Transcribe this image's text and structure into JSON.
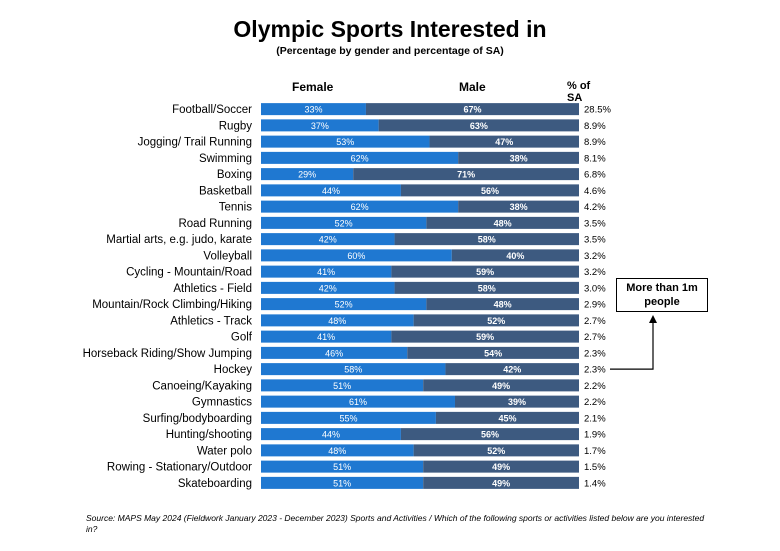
{
  "header": {
    "title": "Olympic Sports Interested in",
    "subtitle": "(Percentage by gender and percentage of SA)",
    "female_label": "Female",
    "male_label": "Male",
    "share_label": "% of SA"
  },
  "callout": {
    "text": "More than 1m people"
  },
  "footer": {
    "source": "Source: MAPS May 2024 (Fieldwork January 2023 - December 2023) Sports and Activities / Which of the following sports or activities listed below are you interested in?"
  },
  "colors": {
    "female": "#1f78d1",
    "male": "#3d5a80",
    "bar_text": "#ffffff"
  },
  "chart_data": {
    "type": "bar",
    "orientation": "horizontal",
    "stacked": true,
    "percent_stacked": true,
    "categories": [
      "Football/Soccer",
      "Rugby",
      "Jogging/ Trail Running",
      "Swimming",
      "Boxing",
      "Basketball",
      "Tennis",
      "Road Running",
      "Martial arts, e.g. judo, karate",
      "Volleyball",
      "Cycling - Mountain/Road",
      "Athletics - Field",
      "Mountain/Rock Climbing/Hiking",
      "Athletics - Track",
      "Golf",
      "Horseback Riding/Show Jumping",
      "Hockey",
      "Canoeing/Kayaking",
      "Gymnastics",
      "Surfing/bodyboarding",
      "Hunting/shooting",
      "Water polo",
      "Rowing - Stationary/Outdoor",
      "Skateboarding"
    ],
    "series": [
      {
        "name": "Female",
        "values": [
          33,
          37,
          53,
          62,
          29,
          44,
          62,
          52,
          42,
          60,
          41,
          42,
          52,
          48,
          41,
          46,
          58,
          51,
          61,
          55,
          44,
          48,
          51,
          51
        ]
      },
      {
        "name": "Male",
        "values": [
          67,
          63,
          47,
          38,
          71,
          56,
          38,
          48,
          58,
          40,
          59,
          58,
          48,
          52,
          59,
          54,
          42,
          49,
          39,
          45,
          56,
          52,
          49,
          49
        ]
      }
    ],
    "percent_of_sa": [
      "28.5%",
      "8.9%",
      "8.9%",
      "8.1%",
      "6.8%",
      "4.6%",
      "4.2%",
      "3.5%",
      "3.5%",
      "3.2%",
      "3.2%",
      "3.0%",
      "2.9%",
      "2.7%",
      "2.7%",
      "2.3%",
      "2.3%",
      "2.2%",
      "2.2%",
      "2.1%",
      "1.9%",
      "1.7%",
      "1.5%",
      "1.4%"
    ],
    "value_suffix": "%",
    "xlim": [
      0,
      100
    ],
    "legend": "none",
    "grid": false
  }
}
